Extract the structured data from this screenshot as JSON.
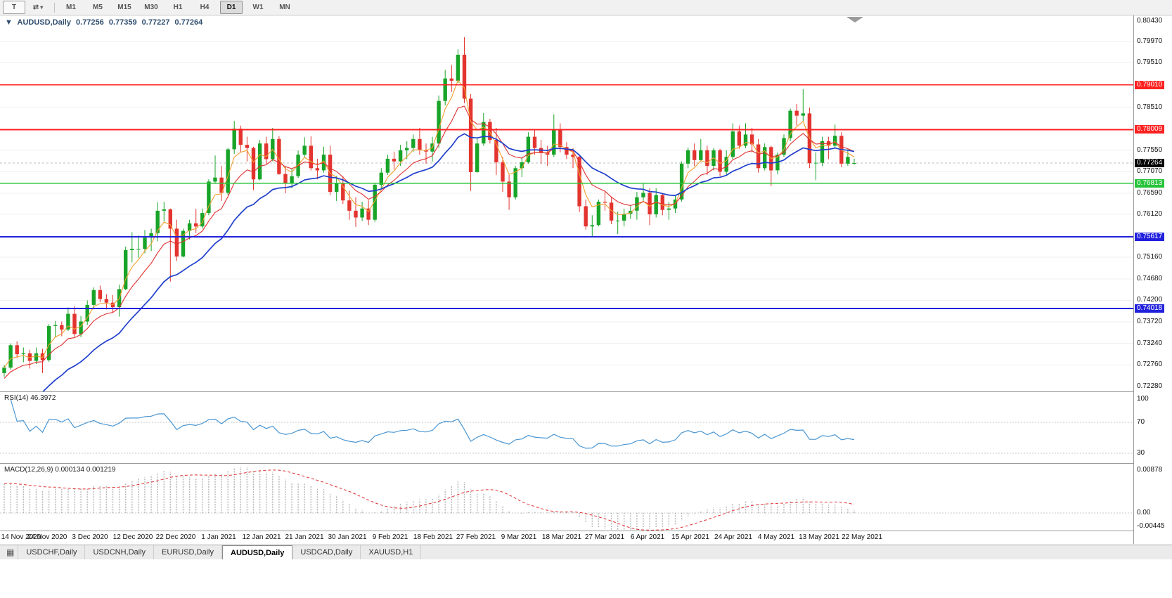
{
  "toolbar": {
    "left_buttons": [
      {
        "label": "T"
      },
      {
        "label": "⇄",
        "caret": "▾"
      }
    ],
    "timeframes": [
      "M1",
      "M5",
      "M15",
      "M30",
      "H1",
      "H4",
      "D1",
      "W1",
      "MN"
    ],
    "active_timeframe": "D1"
  },
  "chart_data": {
    "type": "candlestick",
    "symbol": "AUDUSD",
    "timeframe": "Daily",
    "title": "AUDUSD,Daily",
    "collapse_icon": "▼",
    "ohlc": {
      "open": "0.77256",
      "high": "0.77359",
      "low": "0.77227",
      "close": "0.77264"
    },
    "y_range": [
      0.7228,
      0.8043
    ],
    "candle_colors": {
      "up": "#18a428",
      "down": "#e3342f"
    },
    "grid_prices": [
      0.7997,
      0.7951,
      0.7851,
      0.7755,
      0.7707,
      0.7659,
      0.7612,
      0.7516,
      0.7468,
      0.742,
      0.7372,
      0.7324,
      0.7276
    ],
    "price_scale": [
      {
        "text": "0.80430",
        "price": 0.8043,
        "type": "normal"
      },
      {
        "text": "0.79970",
        "price": 0.7997,
        "type": "normal"
      },
      {
        "text": "0.79510",
        "price": 0.7951,
        "type": "normal"
      },
      {
        "text": "0.79010",
        "price": 0.7901,
        "type": "red"
      },
      {
        "text": "0.78510",
        "price": 0.7851,
        "type": "normal"
      },
      {
        "text": "0.78009",
        "price": 0.78009,
        "type": "red"
      },
      {
        "text": "0.77550",
        "price": 0.7755,
        "type": "normal"
      },
      {
        "text": "0.77264",
        "price": 0.77264,
        "type": "black"
      },
      {
        "text": "0.77070",
        "price": 0.7707,
        "type": "normal"
      },
      {
        "text": "0.76813",
        "price": 0.76813,
        "type": "green"
      },
      {
        "text": "0.76590",
        "price": 0.7659,
        "type": "normal"
      },
      {
        "text": "0.76120",
        "price": 0.7612,
        "type": "normal"
      },
      {
        "text": "0.75617",
        "price": 0.75617,
        "type": "blue"
      },
      {
        "text": "0.75160",
        "price": 0.7516,
        "type": "normal"
      },
      {
        "text": "0.74680",
        "price": 0.7468,
        "type": "normal"
      },
      {
        "text": "0.74200",
        "price": 0.742,
        "type": "normal"
      },
      {
        "text": "0.74018",
        "price": 0.74018,
        "type": "blue"
      },
      {
        "text": "0.73720",
        "price": 0.7372,
        "type": "normal"
      },
      {
        "text": "0.73240",
        "price": 0.7324,
        "type": "normal"
      },
      {
        "text": "0.72760",
        "price": 0.7276,
        "type": "normal"
      },
      {
        "text": "0.72280",
        "price": 0.7228,
        "type": "normal"
      }
    ],
    "levels": [
      {
        "price": 0.7901,
        "color": "#ff2020",
        "width": 1.3,
        "label": "0.79010"
      },
      {
        "price": 0.78009,
        "color": "#ff2020",
        "width": 2.2,
        "label": "0.78009"
      },
      {
        "price": 0.76813,
        "color": "#27c43a",
        "width": 1.6,
        "label": "0.76813"
      },
      {
        "price": 0.75617,
        "color": "#2121dd",
        "width": 2.0,
        "label": "0.75617"
      },
      {
        "price": 0.74018,
        "color": "#2121dd",
        "width": 2.0,
        "label": "0.74018"
      }
    ],
    "current_price": {
      "value": 0.77264,
      "label": "0.77264"
    },
    "moving_averages": [
      {
        "name": "fast",
        "period": 4,
        "color": "#f0a030",
        "width": 1.1
      },
      {
        "name": "mid",
        "period": 9,
        "color": "#e03030",
        "width": 1.1,
        "seed": 0.724
      },
      {
        "name": "slow",
        "period": 20,
        "color": "#2040cc",
        "width": 1.7,
        "seed": 0.7135
      }
    ],
    "dates": [
      "14 Nov 2020",
      "24 Nov 2020",
      "3 Dec 2020",
      "12 Dec 2020",
      "22 Dec 2020",
      "1 Jan 2021",
      "12 Jan 2021",
      "21 Jan 2021",
      "30 Jan 2021",
      "9 Feb 2021",
      "18 Feb 2021",
      "27 Feb 2021",
      "9 Mar 2021",
      "18 Mar 2021",
      "27 Mar 2021",
      "6 Apr 2021",
      "15 Apr 2021",
      "24 Apr 2021",
      "4 May 2021",
      "13 May 2021",
      "22 May 2021"
    ],
    "candles": [
      [
        0.7258,
        0.7276,
        0.725,
        0.727
      ],
      [
        0.727,
        0.7324,
        0.7265,
        0.732
      ],
      [
        0.732,
        0.7329,
        0.7292,
        0.73
      ],
      [
        0.73,
        0.7315,
        0.7282,
        0.7302
      ],
      [
        0.7302,
        0.731,
        0.7268,
        0.7285
      ],
      [
        0.7285,
        0.7315,
        0.7278,
        0.7302
      ],
      [
        0.7302,
        0.7312,
        0.7258,
        0.7287
      ],
      [
        0.7287,
        0.7367,
        0.7283,
        0.7363
      ],
      [
        0.7363,
        0.7374,
        0.7338,
        0.7365
      ],
      [
        0.7365,
        0.7373,
        0.734,
        0.7355
      ],
      [
        0.7355,
        0.7404,
        0.7352,
        0.739
      ],
      [
        0.739,
        0.7407,
        0.7339,
        0.7345
      ],
      [
        0.7345,
        0.7385,
        0.7338,
        0.7373
      ],
      [
        0.7373,
        0.742,
        0.7365,
        0.741
      ],
      [
        0.741,
        0.7449,
        0.74,
        0.7443
      ],
      [
        0.7443,
        0.7453,
        0.7416,
        0.7423
      ],
      [
        0.7423,
        0.7434,
        0.74,
        0.7415
      ],
      [
        0.7415,
        0.7432,
        0.7393,
        0.7405
      ],
      [
        0.7405,
        0.7455,
        0.7384,
        0.7445
      ],
      [
        0.7445,
        0.754,
        0.7443,
        0.7532
      ],
      [
        0.7532,
        0.7572,
        0.7505,
        0.7535
      ],
      [
        0.7535,
        0.7565,
        0.7515,
        0.7535
      ],
      [
        0.7535,
        0.7577,
        0.7525,
        0.756
      ],
      [
        0.756,
        0.758,
        0.753,
        0.757
      ],
      [
        0.757,
        0.7639,
        0.7552,
        0.762
      ],
      [
        0.762,
        0.764,
        0.7596,
        0.7623
      ],
      [
        0.7623,
        0.7625,
        0.7462,
        0.758
      ],
      [
        0.758,
        0.76,
        0.7508,
        0.7518
      ],
      [
        0.7518,
        0.758,
        0.7516,
        0.7575
      ],
      [
        0.7575,
        0.76,
        0.7556,
        0.7592
      ],
      [
        0.7592,
        0.7624,
        0.757,
        0.7585
      ],
      [
        0.7585,
        0.7625,
        0.758,
        0.7615
      ],
      [
        0.7615,
        0.769,
        0.761,
        0.7685
      ],
      [
        0.7685,
        0.7743,
        0.768,
        0.7694
      ],
      [
        0.7694,
        0.772,
        0.7642,
        0.766
      ],
      [
        0.766,
        0.776,
        0.7655,
        0.7757
      ],
      [
        0.7757,
        0.782,
        0.7747,
        0.7803
      ],
      [
        0.7803,
        0.781,
        0.775,
        0.7767
      ],
      [
        0.7767,
        0.7785,
        0.773,
        0.776
      ],
      [
        0.776,
        0.7763,
        0.7666,
        0.769
      ],
      [
        0.769,
        0.7778,
        0.7688,
        0.777
      ],
      [
        0.777,
        0.7785,
        0.7725,
        0.7735
      ],
      [
        0.7735,
        0.7805,
        0.773,
        0.778
      ],
      [
        0.778,
        0.7786,
        0.77,
        0.7702
      ],
      [
        0.7702,
        0.772,
        0.7659,
        0.768
      ],
      [
        0.768,
        0.7713,
        0.767,
        0.7697
      ],
      [
        0.7697,
        0.7754,
        0.7693,
        0.7745
      ],
      [
        0.7745,
        0.7784,
        0.774,
        0.7765
      ],
      [
        0.7765,
        0.7786,
        0.771,
        0.7715
      ],
      [
        0.7715,
        0.7736,
        0.769,
        0.771
      ],
      [
        0.771,
        0.7763,
        0.7705,
        0.7745
      ],
      [
        0.7745,
        0.7765,
        0.7655,
        0.7662
      ],
      [
        0.7662,
        0.7698,
        0.7642,
        0.7682
      ],
      [
        0.7682,
        0.7697,
        0.7635,
        0.7643
      ],
      [
        0.7643,
        0.7665,
        0.76,
        0.762
      ],
      [
        0.762,
        0.765,
        0.7584,
        0.7605
      ],
      [
        0.7605,
        0.764,
        0.7597,
        0.7625
      ],
      [
        0.7625,
        0.7643,
        0.7588,
        0.76
      ],
      [
        0.76,
        0.7682,
        0.7595,
        0.7678
      ],
      [
        0.7678,
        0.7715,
        0.767,
        0.7705
      ],
      [
        0.7705,
        0.7745,
        0.77,
        0.7736
      ],
      [
        0.7736,
        0.7752,
        0.7712,
        0.773
      ],
      [
        0.773,
        0.7767,
        0.772,
        0.7755
      ],
      [
        0.7755,
        0.7775,
        0.7735,
        0.776
      ],
      [
        0.776,
        0.779,
        0.7752,
        0.778
      ],
      [
        0.778,
        0.7805,
        0.7745,
        0.7755
      ],
      [
        0.7755,
        0.777,
        0.7725,
        0.7752
      ],
      [
        0.7752,
        0.7785,
        0.773,
        0.777
      ],
      [
        0.777,
        0.7877,
        0.776,
        0.7865
      ],
      [
        0.7865,
        0.7934,
        0.7855,
        0.7915
      ],
      [
        0.7915,
        0.7945,
        0.7885,
        0.791
      ],
      [
        0.791,
        0.798,
        0.7905,
        0.7968
      ],
      [
        0.7968,
        0.8007,
        0.786,
        0.787
      ],
      [
        0.787,
        0.788,
        0.7664,
        0.7706
      ],
      [
        0.7706,
        0.7784,
        0.7705,
        0.777
      ],
      [
        0.777,
        0.7838,
        0.7765,
        0.7818
      ],
      [
        0.7818,
        0.7825,
        0.777,
        0.7778
      ],
      [
        0.7778,
        0.7805,
        0.77,
        0.7728
      ],
      [
        0.7728,
        0.774,
        0.7662,
        0.7685
      ],
      [
        0.7685,
        0.77,
        0.7622,
        0.765
      ],
      [
        0.765,
        0.772,
        0.7645,
        0.7715
      ],
      [
        0.7715,
        0.774,
        0.7695,
        0.7728
      ],
      [
        0.7728,
        0.7795,
        0.7725,
        0.7785
      ],
      [
        0.7785,
        0.78,
        0.7745,
        0.776
      ],
      [
        0.776,
        0.7778,
        0.7725,
        0.775
      ],
      [
        0.775,
        0.7765,
        0.772,
        0.7745
      ],
      [
        0.7745,
        0.7835,
        0.774,
        0.78
      ],
      [
        0.78,
        0.7815,
        0.775,
        0.7762
      ],
      [
        0.7762,
        0.7773,
        0.7735,
        0.7745
      ],
      [
        0.7745,
        0.776,
        0.7715,
        0.774
      ],
      [
        0.774,
        0.7745,
        0.7617,
        0.763
      ],
      [
        0.763,
        0.7645,
        0.7578,
        0.7585
      ],
      [
        0.7585,
        0.761,
        0.7562,
        0.7588
      ],
      [
        0.7588,
        0.7645,
        0.7585,
        0.764
      ],
      [
        0.764,
        0.7664,
        0.762,
        0.7638
      ],
      [
        0.7638,
        0.765,
        0.759,
        0.7598
      ],
      [
        0.7598,
        0.7618,
        0.7568,
        0.7598
      ],
      [
        0.7598,
        0.7625,
        0.7585,
        0.7613
      ],
      [
        0.7613,
        0.763,
        0.7602,
        0.762
      ],
      [
        0.762,
        0.7662,
        0.76,
        0.765
      ],
      [
        0.765,
        0.768,
        0.764,
        0.766
      ],
      [
        0.766,
        0.767,
        0.7588,
        0.7612
      ],
      [
        0.7612,
        0.767,
        0.7605,
        0.7655
      ],
      [
        0.7655,
        0.766,
        0.761,
        0.7622
      ],
      [
        0.7622,
        0.764,
        0.76,
        0.7625
      ],
      [
        0.7625,
        0.7655,
        0.7615,
        0.7645
      ],
      [
        0.7645,
        0.773,
        0.764,
        0.7725
      ],
      [
        0.7725,
        0.7761,
        0.7715,
        0.7755
      ],
      [
        0.7755,
        0.777,
        0.772,
        0.7733
      ],
      [
        0.7733,
        0.778,
        0.773,
        0.7755
      ],
      [
        0.7755,
        0.7765,
        0.77,
        0.772
      ],
      [
        0.772,
        0.776,
        0.771,
        0.7755
      ],
      [
        0.7755,
        0.7758,
        0.7697,
        0.7707
      ],
      [
        0.7707,
        0.7755,
        0.77,
        0.774
      ],
      [
        0.774,
        0.7815,
        0.7735,
        0.7797
      ],
      [
        0.7797,
        0.781,
        0.7758,
        0.7765
      ],
      [
        0.7765,
        0.7815,
        0.776,
        0.779
      ],
      [
        0.779,
        0.7805,
        0.775,
        0.7768
      ],
      [
        0.7768,
        0.778,
        0.7705,
        0.7715
      ],
      [
        0.7715,
        0.777,
        0.771,
        0.7762
      ],
      [
        0.7762,
        0.7765,
        0.7675,
        0.771
      ],
      [
        0.771,
        0.775,
        0.7701,
        0.7745
      ],
      [
        0.7745,
        0.779,
        0.774,
        0.7782
      ],
      [
        0.7782,
        0.7848,
        0.7775,
        0.7843
      ],
      [
        0.7843,
        0.7858,
        0.781,
        0.7832
      ],
      [
        0.7832,
        0.7891,
        0.782,
        0.7837
      ],
      [
        0.7837,
        0.785,
        0.7715,
        0.7726
      ],
      [
        0.7726,
        0.775,
        0.7688,
        0.7727
      ],
      [
        0.7727,
        0.7785,
        0.772,
        0.7775
      ],
      [
        0.7775,
        0.7785,
        0.7735,
        0.7765
      ],
      [
        0.7765,
        0.7812,
        0.776,
        0.7787
      ],
      [
        0.7787,
        0.7795,
        0.7717,
        0.7725
      ],
      [
        0.7725,
        0.7757,
        0.772,
        0.774
      ],
      [
        0.77256,
        0.77359,
        0.77227,
        0.77264
      ]
    ],
    "rsi": {
      "label": "RSI(14) 46.3972",
      "period": 14,
      "color": "#4a96d2",
      "levels": [
        70,
        30
      ],
      "scale": [
        {
          "text": "100",
          "value": 100
        },
        {
          "text": "70",
          "value": 70
        },
        {
          "text": "30",
          "value": 30
        }
      ]
    },
    "macd": {
      "label": "MACD(12,26,9) 0.000134 0.001219",
      "fast": 12,
      "slow": 26,
      "signal": 9,
      "slow_seed": 0.7205,
      "bar_color": "#b4b4b4",
      "signal_color": "#e03030",
      "scale": [
        {
          "text": "0.00878",
          "value": 0.00878
        },
        {
          "text": "0.00",
          "value": 0
        },
        {
          "text": "-0.00445",
          "value": -0.00445
        }
      ]
    }
  },
  "tabs": {
    "icon_glyph": "▦",
    "items": [
      "USDCHF,Daily",
      "USDCNH,Daily",
      "EURUSD,Daily",
      "AUDUSD,Daily",
      "USDCAD,Daily",
      "XAUUSD,H1"
    ],
    "active": "AUDUSD,Daily"
  }
}
